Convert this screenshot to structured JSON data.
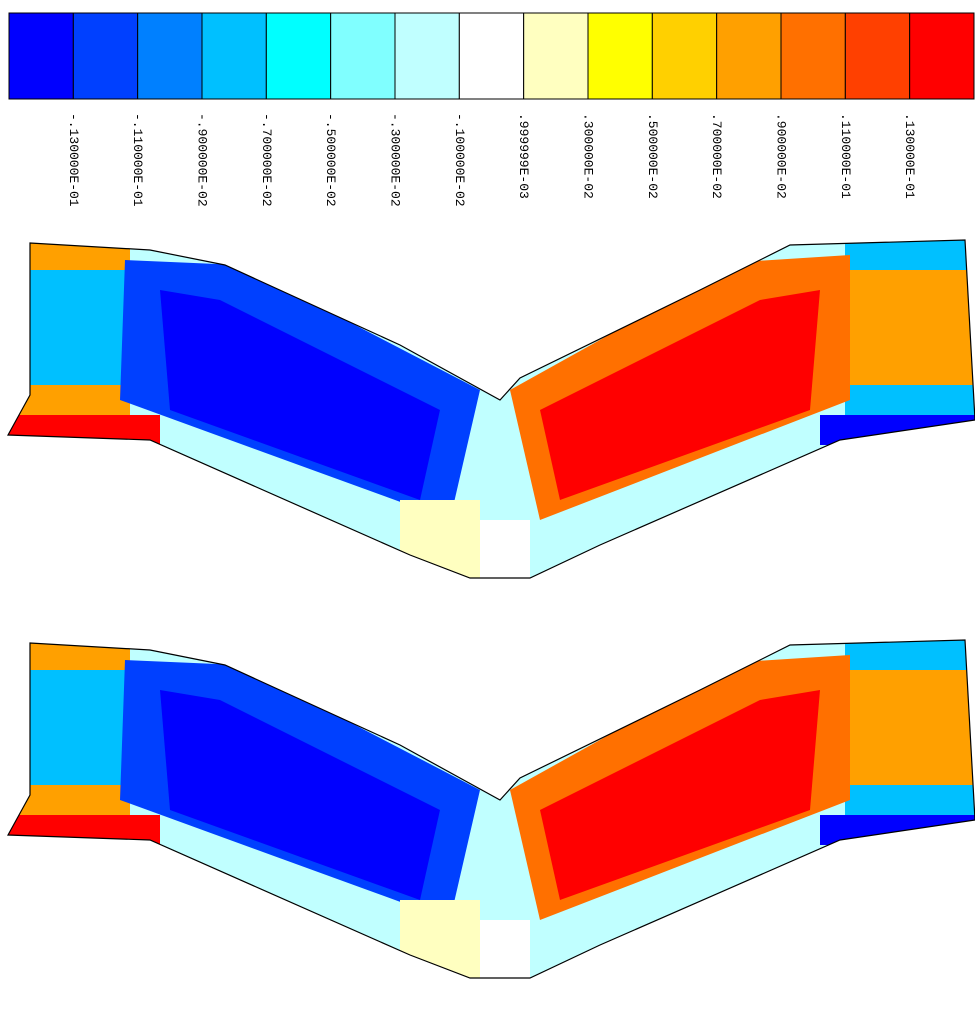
{
  "legend": {
    "colors": [
      "#0000ff",
      "#0040ff",
      "#0080ff",
      "#00c0ff",
      "#00ffff",
      "#80ffff",
      "#c0ffff",
      "#ffffff",
      "#ffffc0",
      "#ffff00",
      "#ffd000",
      "#ffa000",
      "#ff7000",
      "#ff4000",
      "#ff0000"
    ],
    "labels": [
      "-.130000E-01",
      "-.110000E-01",
      "-.900000E-02",
      "-.700000E-02",
      "-.500000E-02",
      "-.300000E-02",
      "-.100000E-02",
      ".999999E-03",
      ".300000E-02",
      ".500000E-02",
      ".700000E-02",
      ".900000E-02",
      ".110000E-01",
      ".130000E-01"
    ]
  }
}
